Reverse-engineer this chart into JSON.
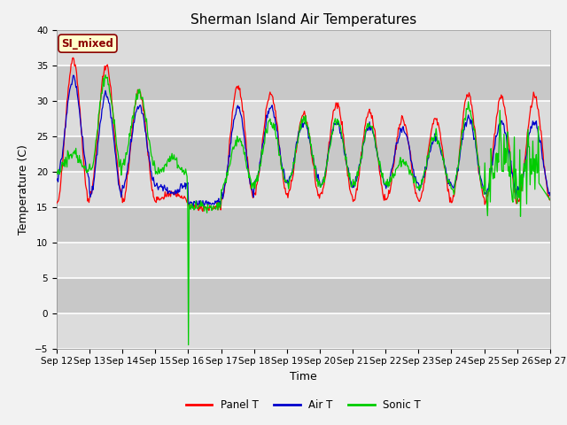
{
  "title": "Sherman Island Air Temperatures",
  "xlabel": "Time",
  "ylabel": "Temperature (C)",
  "ylim": [
    -5,
    40
  ],
  "annotation_text": "SI_mixed",
  "annotation_color": "#8B0000",
  "annotation_bg": "#FFFFCC",
  "line_colors": {
    "panel": "#FF0000",
    "air": "#0000CC",
    "sonic": "#00CC00"
  },
  "legend_labels": [
    "Panel T",
    "Air T",
    "Sonic T"
  ],
  "xtick_labels": [
    "Sep 12",
    "Sep 13",
    "Sep 14",
    "Sep 15",
    "Sep 16",
    "Sep 17",
    "Sep 18",
    "Sep 19",
    "Sep 20",
    "Sep 21",
    "Sep 22",
    "Sep 23",
    "Sep 24",
    "Sep 25",
    "Sep 26",
    "Sep 27"
  ],
  "fig_bg": "#F2F2F2",
  "plot_bg_light": "#DCDCDC",
  "plot_bg_dark": "#C8C8C8",
  "grid_color": "#FFFFFF",
  "title_fontsize": 11,
  "axis_label_fontsize": 9,
  "tick_fontsize": 7.5
}
